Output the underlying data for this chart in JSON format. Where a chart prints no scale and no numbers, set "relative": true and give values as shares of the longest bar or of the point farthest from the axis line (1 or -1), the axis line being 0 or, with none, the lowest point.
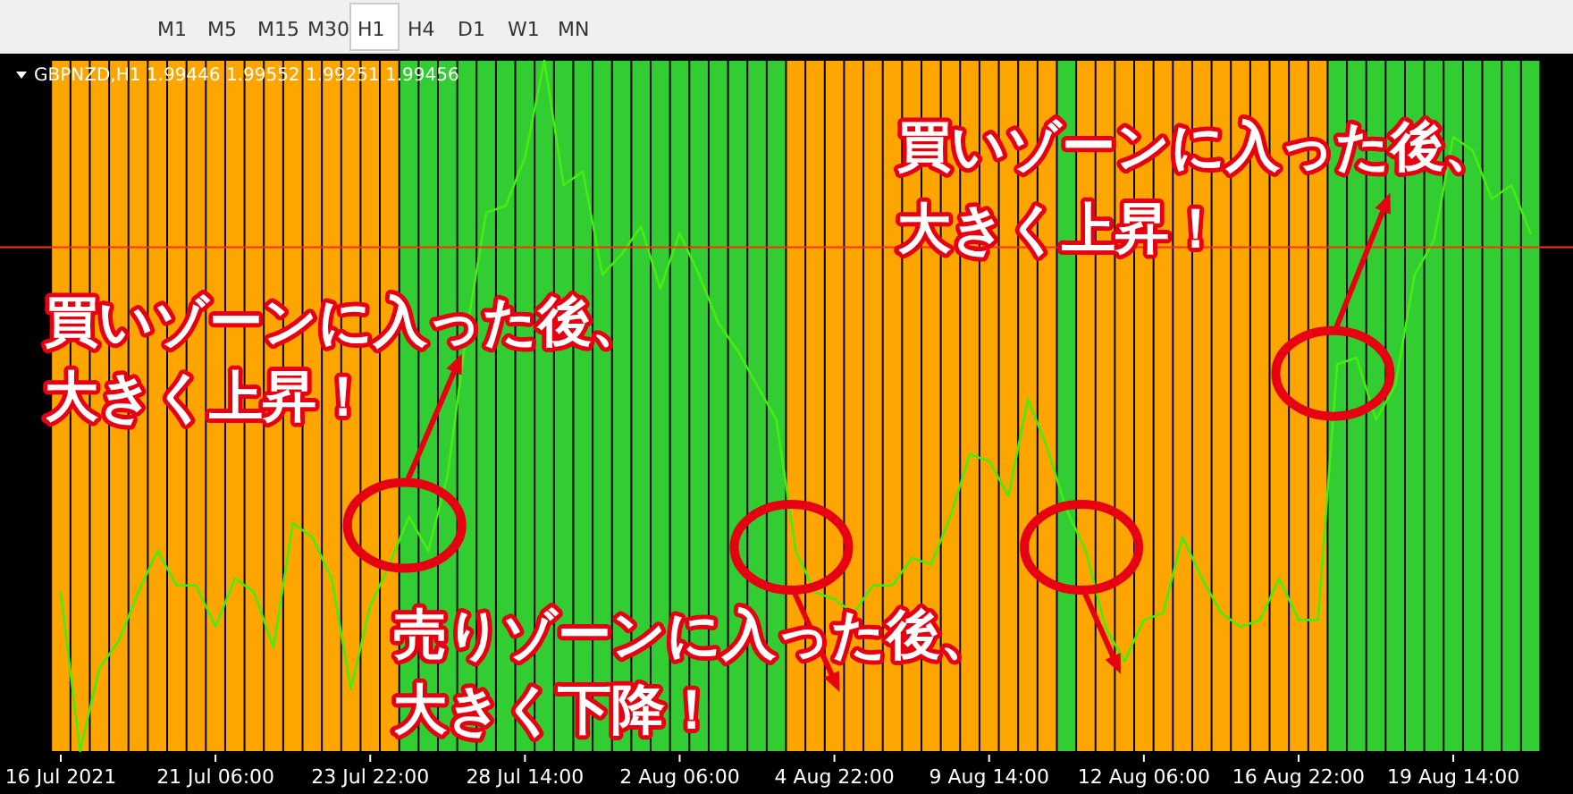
{
  "chart_data": {
    "type": "line",
    "relative": true,
    "title": "GBPNZD,H1  1.99446 1.99552 1.99251 1.99456",
    "categories": [
      "16 Jul 2021",
      null,
      null,
      null,
      null,
      null,
      null,
      null,
      "21 Jul 06:00",
      null,
      null,
      null,
      null,
      null,
      null,
      null,
      "23 Jul 22:00",
      null,
      null,
      null,
      null,
      null,
      null,
      null,
      "28 Jul 14:00",
      null,
      null,
      null,
      null,
      null,
      null,
      null,
      "2 Aug 06:00",
      null,
      null,
      null,
      null,
      null,
      null,
      null,
      "4 Aug 22:00",
      null,
      null,
      null,
      null,
      null,
      null,
      null,
      "9 Aug 14:00",
      null,
      null,
      null,
      null,
      null,
      null,
      null,
      "12 Aug 06:00",
      null,
      null,
      null,
      null,
      null,
      null,
      null,
      "16 Aug 22:00",
      null,
      null,
      null,
      null,
      null,
      null,
      null,
      "19 Aug 14:00",
      null,
      null,
      null,
      null
    ],
    "tick_labels": "x",
    "series": [
      {
        "type": "bar",
        "colors": [
          "#ffa500",
          "#ffa500",
          "#ffa500",
          "#ffa500",
          "#ffa500",
          "#ffa500",
          "#ffa500",
          "#ffa500",
          "#ffa500",
          "#ffa500",
          "#ffa500",
          "#ffa500",
          "#ffa500",
          "#ffa500",
          "#ffa500",
          "#ffa500",
          "#ffa500",
          "#ffa500",
          "#32cd32",
          "#32cd32",
          "#32cd32",
          "#32cd32",
          "#32cd32",
          "#32cd32",
          "#32cd32",
          "#32cd32",
          "#32cd32",
          "#32cd32",
          "#32cd32",
          "#32cd32",
          "#32cd32",
          "#32cd32",
          "#32cd32",
          "#32cd32",
          "#32cd32",
          "#32cd32",
          "#32cd32",
          "#32cd32",
          "#ffa500",
          "#ffa500",
          "#ffa500",
          "#ffa500",
          "#ffa500",
          "#ffa500",
          "#ffa500",
          "#ffa500",
          "#ffa500",
          "#ffa500",
          "#ffa500",
          "#ffa500",
          "#ffa500",
          "#ffa500",
          "#32cd32",
          "#ffa500",
          "#ffa500",
          "#ffa500",
          "#ffa500",
          "#ffa500",
          "#ffa500",
          "#ffa500",
          "#ffa500",
          "#ffa500",
          "#ffa500",
          "#ffa500",
          "#ffa500",
          "#ffa500",
          "#32cd32",
          "#32cd32",
          "#32cd32",
          "#32cd32",
          "#32cd32",
          "#32cd32",
          "#32cd32",
          "#32cd32",
          "#32cd32",
          "#32cd32",
          "#32cd32"
        ],
        "values": [
          1,
          1,
          1,
          1,
          1,
          1,
          1,
          1,
          1,
          1,
          1,
          1,
          1,
          1,
          1,
          1,
          1,
          1,
          1,
          1,
          1,
          1,
          1,
          1,
          1,
          1,
          1,
          1,
          1,
          1,
          1,
          1,
          1,
          1,
          1,
          1,
          1,
          1,
          1,
          1,
          1,
          1,
          1,
          1,
          1,
          1,
          1,
          1,
          1,
          1,
          1,
          1,
          1,
          1,
          1,
          1,
          1,
          1,
          1,
          1,
          1,
          1,
          1,
          1,
          1,
          1,
          1,
          1,
          1,
          1,
          1,
          1,
          1,
          1,
          1,
          1,
          1
        ]
      },
      {
        "color": "#44ee11",
        "values": [
          0.23,
          0.0,
          0.12,
          0.16,
          0.23,
          0.29,
          0.24,
          0.24,
          0.18,
          0.25,
          0.23,
          0.15,
          0.33,
          0.31,
          0.25,
          0.09,
          0.21,
          0.27,
          0.34,
          0.29,
          0.4,
          0.61,
          0.78,
          0.79,
          0.86,
          1.0,
          0.82,
          0.84,
          0.69,
          0.72,
          0.76,
          0.67,
          0.75,
          0.69,
          0.62,
          0.58,
          0.53,
          0.48,
          0.29,
          0.23,
          0.22,
          0.2,
          0.24,
          0.24,
          0.28,
          0.27,
          0.34,
          0.43,
          0.42,
          0.37,
          0.51,
          0.44,
          0.35,
          0.29,
          0.18,
          0.13,
          0.19,
          0.2,
          0.31,
          0.25,
          0.2,
          0.18,
          0.19,
          0.25,
          0.19,
          0.19,
          0.56,
          0.57,
          0.48,
          0.53,
          0.69,
          0.74,
          0.89,
          0.87,
          0.8,
          0.82,
          0.75
        ]
      }
    ],
    "ref_lines": [
      {
        "axis": "y",
        "value": 0.73,
        "color": "#ff3300"
      }
    ],
    "annotations": [
      "買いゾーンに入った後、大きく上昇！",
      "売りゾーンに入った後、大きく下降！",
      "買いゾーンに入った後、大きく上昇！",
      "M1",
      "M5",
      "M15",
      "M30",
      "H1",
      "H4",
      "D1",
      "W1",
      "MN"
    ]
  }
}
